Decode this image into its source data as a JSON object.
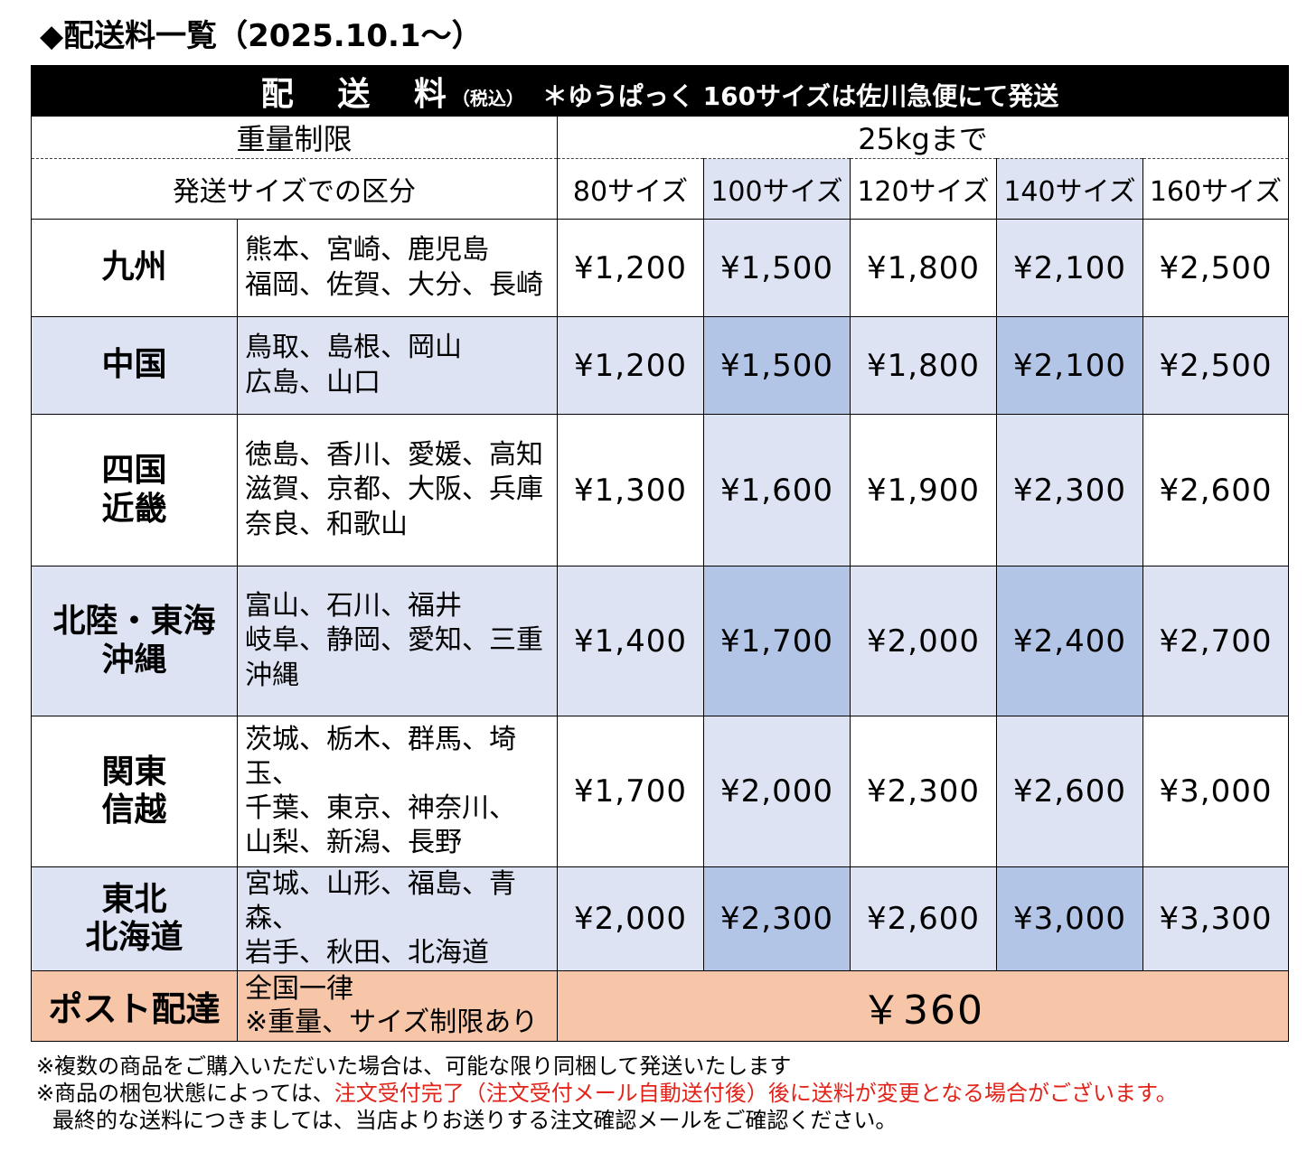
{
  "title": "◆配送料一覧（2025.10.1～）",
  "table": {
    "header": {
      "main": "配 送 料",
      "tax": "（税込）",
      "note": "＊ゆうぱっく 160サイズは佐川急便にて発送"
    },
    "weight_label": "重量制限",
    "weight_value": "25kgまで",
    "size_label": "発送サイズでの区分",
    "sizes": [
      "80サイズ",
      "100サイズ",
      "120サイズ",
      "140サイズ",
      "160サイズ"
    ],
    "rows": [
      {
        "region": "九州",
        "prefs": [
          "熊本、宮崎、鹿児島",
          "福岡、佐賀、大分、長崎"
        ],
        "prices": [
          "¥1,200",
          "¥1,500",
          "¥1,800",
          "¥2,100",
          "¥2,500"
        ]
      },
      {
        "region": "中国",
        "prefs": [
          "鳥取、島根、岡山",
          "広島、山口"
        ],
        "prices": [
          "¥1,200",
          "¥1,500",
          "¥1,800",
          "¥2,100",
          "¥2,500"
        ]
      },
      {
        "region": "四国\n近畿",
        "prefs": [
          "徳島、香川、愛媛、高知",
          "滋賀、京都、大阪、兵庫",
          "奈良、和歌山"
        ],
        "prices": [
          "¥1,300",
          "¥1,600",
          "¥1,900",
          "¥2,300",
          "¥2,600"
        ]
      },
      {
        "region": "北陸・東海\n沖縄",
        "prefs": [
          "富山、石川、福井",
          "岐阜、静岡、愛知、三重",
          "沖縄"
        ],
        "prices": [
          "¥1,400",
          "¥1,700",
          "¥2,000",
          "¥2,400",
          "¥2,700"
        ]
      },
      {
        "region": "関東\n信越",
        "prefs": [
          "茨城、栃木、群馬、埼玉、",
          "千葉、東京、神奈川、",
          "山梨、新潟、長野"
        ],
        "prices": [
          "¥1,700",
          "¥2,000",
          "¥2,300",
          "¥2,600",
          "¥3,000"
        ]
      },
      {
        "region": "東北\n北海道",
        "prefs": [
          "宮城、山形、福島、青森、",
          "岩手、秋田、北海道"
        ],
        "prices": [
          "¥2,000",
          "¥2,300",
          "¥2,600",
          "¥3,000",
          "¥3,300"
        ]
      }
    ],
    "post": {
      "label": "ポスト配達",
      "desc": [
        "全国一律",
        "※重量、サイズ制限あり"
      ],
      "price": "￥360"
    }
  },
  "notes": {
    "line1": "※複数の商品をご購入いただいた場合は、可能な限り同梱して発送いたします",
    "line2_prefix": "※商品の梱包状態によっては、",
    "line2_red": "注文受付完了（注文受付メール自動送付後）後に送料が変更となる場合がございます。",
    "line3": "最終的な送料につきましては、当店よりお送りする注文確認メールをご確認ください。"
  },
  "colors": {
    "header_bg": "#000000",
    "light_row": "#dde3f3",
    "accent_column": "#b3c5e6",
    "post_row": "#f7c6a8",
    "warning_text": "#e2231a"
  }
}
